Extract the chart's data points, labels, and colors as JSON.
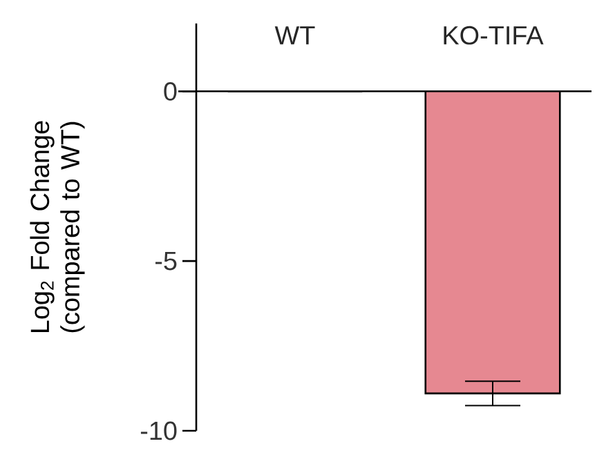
{
  "chart_data": {
    "type": "bar",
    "ylabel": "Log$_{2}$ Fold Change (compared to WT)",
    "categories": [
      "WT",
      "KO-TIFA"
    ],
    "values": [
      0,
      -8.9
    ],
    "errors": [
      null,
      0.36
    ],
    "colors": [
      "#ffffff",
      "#e68891"
    ],
    "ylim": [
      -10,
      2
    ],
    "yticks": [
      -10,
      -5,
      0
    ]
  }
}
